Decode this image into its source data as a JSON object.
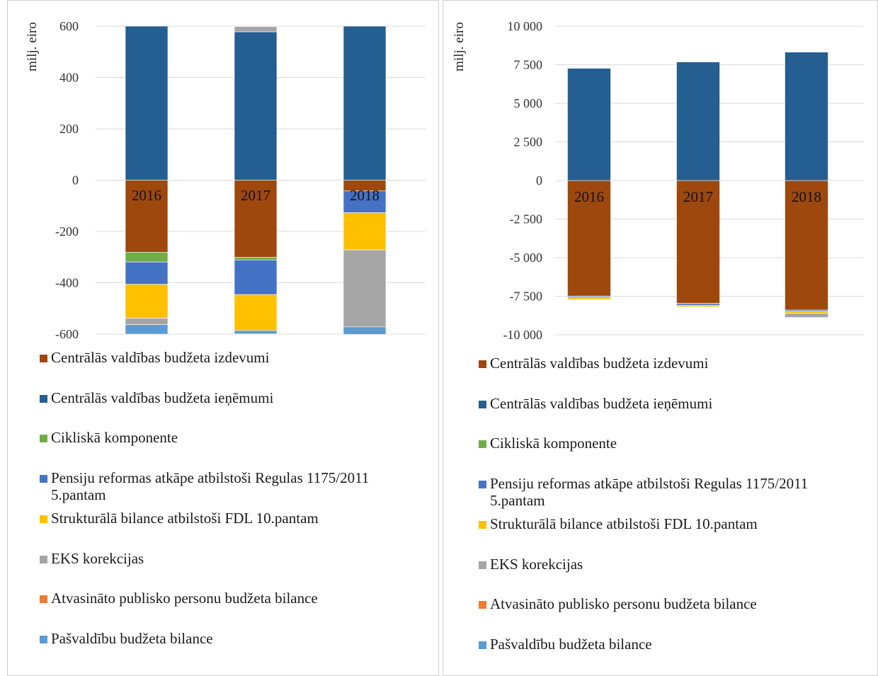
{
  "chart_data": [
    {
      "type": "bar",
      "stacked": true,
      "ylabel": "milj. eiro",
      "categories": [
        "2016",
        "2017",
        "2018"
      ],
      "ylim": [
        -600,
        600
      ],
      "yticks": [
        600,
        400,
        200,
        0,
        -200,
        -400,
        -600
      ],
      "ytick_labels": [
        "600",
        "400",
        "200",
        "0",
        "-200",
        "-400",
        "-600"
      ],
      "grid": true,
      "legend_position": "bottom",
      "series": [
        {
          "name": "Centrālās valdības budžeta izdevumi",
          "color": "#9E480E",
          "values": [
            -281,
            -301,
            -42
          ]
        },
        {
          "name": "Centrālās valdības budžeta ieņēmumi",
          "color": "#255E91",
          "values": [
            600,
            578,
            600
          ]
        },
        {
          "name": "Cikliskā komponente",
          "color": "#70AD47",
          "values": [
            -38,
            -10,
            0
          ]
        },
        {
          "name": "Pensiju reformas atkāpe atbilstoši Regulas 1175/2011 5.pantam",
          "color": "#4472C4",
          "values": [
            -87,
            -135,
            -85
          ]
        },
        {
          "name": "Strukturālā bilance atbilstoši FDL 10.pantam",
          "color": "#FFC000",
          "values": [
            -132,
            -140,
            -145
          ]
        },
        {
          "name": "EKS korekcijas",
          "color": "#A5A5A5",
          "values": [
            -25,
            20,
            -300
          ]
        },
        {
          "name": "Atvasināto publisko personu budžeta bilance",
          "color": "#ED7D31",
          "values": [
            0,
            0,
            0
          ]
        },
        {
          "name": "Pašvaldību budžeta bilance",
          "color": "#5B9BD5",
          "values": [
            -37,
            -13,
            -30
          ]
        }
      ]
    },
    {
      "type": "bar",
      "stacked": true,
      "ylabel": "milj. eiro",
      "categories": [
        "2016",
        "2017",
        "2018"
      ],
      "ylim": [
        -10000,
        10000
      ],
      "yticks": [
        10000,
        7500,
        5000,
        2500,
        0,
        -2500,
        -5000,
        -7500,
        -10000
      ],
      "ytick_labels": [
        "10 000",
        "7 500",
        "5 000",
        "2 500",
        "0",
        "-2 500",
        "-5 000",
        "-7 500",
        "-10 000"
      ],
      "grid": true,
      "legend_position": "bottom",
      "series": [
        {
          "name": "Centrālās valdības budžeta izdevumi",
          "color": "#9E480E",
          "values": [
            -7500,
            -7950,
            -8400
          ]
        },
        {
          "name": "Centrālās valdības budžeta ieņēmumi",
          "color": "#255E91",
          "values": [
            7270,
            7690,
            8320
          ]
        },
        {
          "name": "Cikliskā komponente",
          "color": "#70AD47",
          "values": [
            -10,
            -10,
            0
          ]
        },
        {
          "name": "Pensiju reformas atkāpe atbilstoši Regulas 1175/2011 5.pantam",
          "color": "#4472C4",
          "values": [
            -80,
            -120,
            -80
          ]
        },
        {
          "name": "Strukturālā bilance atbilstoši FDL 10.pantam",
          "color": "#FFC000",
          "values": [
            -110,
            -110,
            -130
          ]
        },
        {
          "name": "EKS korekcijas",
          "color": "#A5A5A5",
          "values": [
            -20,
            20,
            -270
          ]
        },
        {
          "name": "Atvasināto publisko personu budžeta bilance",
          "color": "#ED7D31",
          "values": [
            0,
            0,
            0
          ]
        },
        {
          "name": "Pašvaldību budžeta bilance",
          "color": "#5B9BD5",
          "values": [
            -40,
            -10,
            -30
          ]
        }
      ]
    }
  ]
}
